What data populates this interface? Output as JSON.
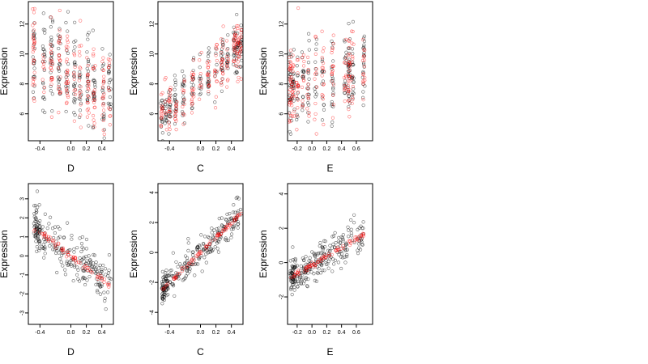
{
  "chart_data": [
    {
      "type": "scatter",
      "xlabel": "D",
      "ylabel": "Expression",
      "xlim": [
        -0.55,
        0.55
      ],
      "ylim": [
        4.2,
        13.5
      ],
      "xticks": [
        -0.4,
        0.0,
        0.2,
        0.4
      ],
      "xtick_labels": [
        "-0.4",
        "0.0",
        "0.2",
        "0.4"
      ],
      "yticks": [
        6,
        8,
        10,
        12
      ],
      "ytick_labels": [
        "6",
        "8",
        "10",
        "12"
      ],
      "pattern": {
        "kind": "cloud",
        "center_slope": -3.0,
        "center_intercept": 8.7,
        "spread": 2.4,
        "x_clusters": [
          -0.48,
          -0.35,
          -0.25,
          -0.15,
          -0.05,
          0.05,
          0.12,
          0.22,
          0.3,
          0.42,
          0.5
        ]
      },
      "series": [
        {
          "color": "#000000",
          "values_count": 220
        },
        {
          "color": "#ff0000",
          "values_count": 200
        }
      ]
    },
    {
      "type": "scatter",
      "xlabel": "C",
      "ylabel": "Expression",
      "xlim": [
        -0.55,
        0.55
      ],
      "ylim": [
        4.2,
        13.5
      ],
      "xticks": [
        -0.4,
        0.0,
        0.2,
        0.4
      ],
      "xtick_labels": [
        "-0.4",
        "0.0",
        "0.2",
        "0.4"
      ],
      "yticks": [
        6,
        8,
        10,
        12
      ],
      "ytick_labels": [
        "6",
        "8",
        "10",
        "12"
      ],
      "pattern": {
        "kind": "cloud",
        "center_slope": 4.5,
        "center_intercept": 8.2,
        "spread": 1.4,
        "x_clusters": [
          -0.5,
          -0.45,
          -0.4,
          -0.32,
          -0.22,
          -0.1,
          0.0,
          0.1,
          0.2,
          0.28,
          0.35,
          0.44,
          0.48,
          0.52
        ]
      },
      "series": [
        {
          "color": "#000000",
          "values_count": 220
        },
        {
          "color": "#ff0000",
          "values_count": 200
        }
      ]
    },
    {
      "type": "scatter",
      "xlabel": "E",
      "ylabel": "Expression",
      "xlim": [
        -0.33,
        0.82
      ],
      "ylim": [
        4.2,
        13.5
      ],
      "xticks": [
        -0.2,
        0.0,
        0.2,
        0.4,
        0.6
      ],
      "xtick_labels": [
        "-0.2",
        "0.0",
        "0.2",
        "0.4",
        "0.6"
      ],
      "yticks": [
        6,
        8,
        10,
        12
      ],
      "ytick_labels": [
        "6",
        "8",
        "10",
        "12"
      ],
      "pattern": {
        "kind": "cloud",
        "center_slope": 1.2,
        "center_intercept": 8.2,
        "spread": 2.2,
        "x_clusters": [
          -0.3,
          -0.28,
          -0.25,
          -0.2,
          -0.12,
          -0.05,
          0.05,
          0.15,
          0.28,
          0.45,
          0.5,
          0.55,
          0.7
        ]
      },
      "series": [
        {
          "color": "#000000",
          "values_count": 220
        },
        {
          "color": "#ff0000",
          "values_count": 200
        }
      ]
    },
    {
      "type": "scatter",
      "xlabel": "D",
      "ylabel": "Expression",
      "xlim": [
        -0.55,
        0.55
      ],
      "ylim": [
        -3.6,
        3.8
      ],
      "xticks": [
        -0.4,
        0.0,
        0.2,
        0.4
      ],
      "xtick_labels": [
        "-0.4",
        "0.0",
        "0.2",
        "0.4"
      ],
      "yticks": [
        -3,
        -2,
        -1,
        0,
        1,
        2,
        3
      ],
      "ytick_labels": [
        "-3",
        "-2",
        "-1",
        "0",
        "1",
        "2",
        "3"
      ],
      "pattern": {
        "kind": "fitted",
        "fit_slope": -3.1,
        "fit_intercept": 0.0,
        "fit_range": [
          -0.48,
          0.52
        ],
        "spread": 1.0
      },
      "series": [
        {
          "color": "#000000",
          "values_count": 240
        },
        {
          "color": "#ff0000",
          "values_count": 70
        }
      ]
    },
    {
      "type": "scatter",
      "xlabel": "C",
      "ylabel": "Expression",
      "xlim": [
        -0.55,
        0.55
      ],
      "ylim": [
        -4.8,
        4.6
      ],
      "xticks": [
        -0.4,
        0.0,
        0.2,
        0.4
      ],
      "xtick_labels": [
        "-0.4",
        "0.0",
        "0.2",
        "0.4"
      ],
      "yticks": [
        -4,
        -2,
        0,
        2,
        4
      ],
      "ytick_labels": [
        "-4",
        "-2",
        "0",
        "2",
        "4"
      ],
      "pattern": {
        "kind": "fitted",
        "fit_slope": 5.0,
        "fit_intercept": 0.0,
        "fit_range": [
          -0.5,
          0.53
        ],
        "spread": 0.9
      },
      "series": [
        {
          "color": "#000000",
          "values_count": 260
        },
        {
          "color": "#ff0000",
          "values_count": 80
        }
      ]
    },
    {
      "type": "scatter",
      "xlabel": "E",
      "ylabel": "Expression",
      "xlim": [
        -0.33,
        0.82
      ],
      "ylim": [
        -3.6,
        4.6
      ],
      "xticks": [
        -0.2,
        0.0,
        0.2,
        0.4,
        0.6
      ],
      "xtick_labels": [
        "-0.2",
        "0.0",
        "0.2",
        "0.4",
        "0.6"
      ],
      "yticks": [
        -2,
        0,
        2,
        4
      ],
      "ytick_labels": [
        "-2",
        "0",
        "2",
        "4"
      ],
      "pattern": {
        "kind": "fitted",
        "fit_slope": 2.6,
        "fit_intercept": -0.15,
        "fit_range": [
          -0.3,
          0.7
        ],
        "spread": 0.8
      },
      "series": [
        {
          "color": "#000000",
          "values_count": 260
        },
        {
          "color": "#ff0000",
          "values_count": 80
        }
      ]
    }
  ]
}
